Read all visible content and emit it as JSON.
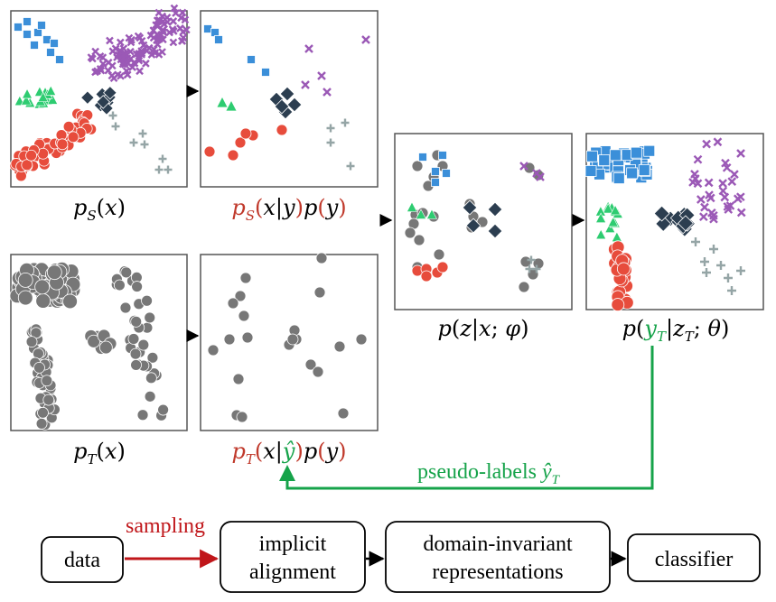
{
  "colors": {
    "blue": "#3b8fd9",
    "purple": "#9b59b6",
    "green": "#2ecc71",
    "red": "#e74c3c",
    "navy": "#2c3e50",
    "gray_plus": "#95a5a6",
    "gray_dot": "#777777",
    "label_red": "#c0392b",
    "label_green": "#16a34a",
    "arrow_green": "#16a34a",
    "arrow_red": "#c0161a"
  },
  "icons": {
    "squares": "square-marker",
    "crosses": "x-marker",
    "triangles": "triangle-marker",
    "circles": "circle-marker",
    "diamonds": "diamond-marker",
    "plus": "plus-marker"
  },
  "labels": {
    "ps_x": "p_S(x)",
    "ps_xy_py": "p_S(x|y)p(y)",
    "pt_x": "p_T(x)",
    "pt_xyhat_py": "p_T(x|ŷ)p(y)",
    "pz_x_phi": "p(z|x; φ)",
    "pyt_zt_theta": "p(y_T|z_T; θ)",
    "pseudo_labels": "pseudo-labels ŷ_T"
  },
  "flow": {
    "data": "data",
    "sampling": "sampling",
    "implicit_line1": "implicit",
    "implicit_line2": "alignment",
    "domain_line1": "domain-invariant",
    "domain_line2": "representations",
    "classifier": "classifier"
  }
}
